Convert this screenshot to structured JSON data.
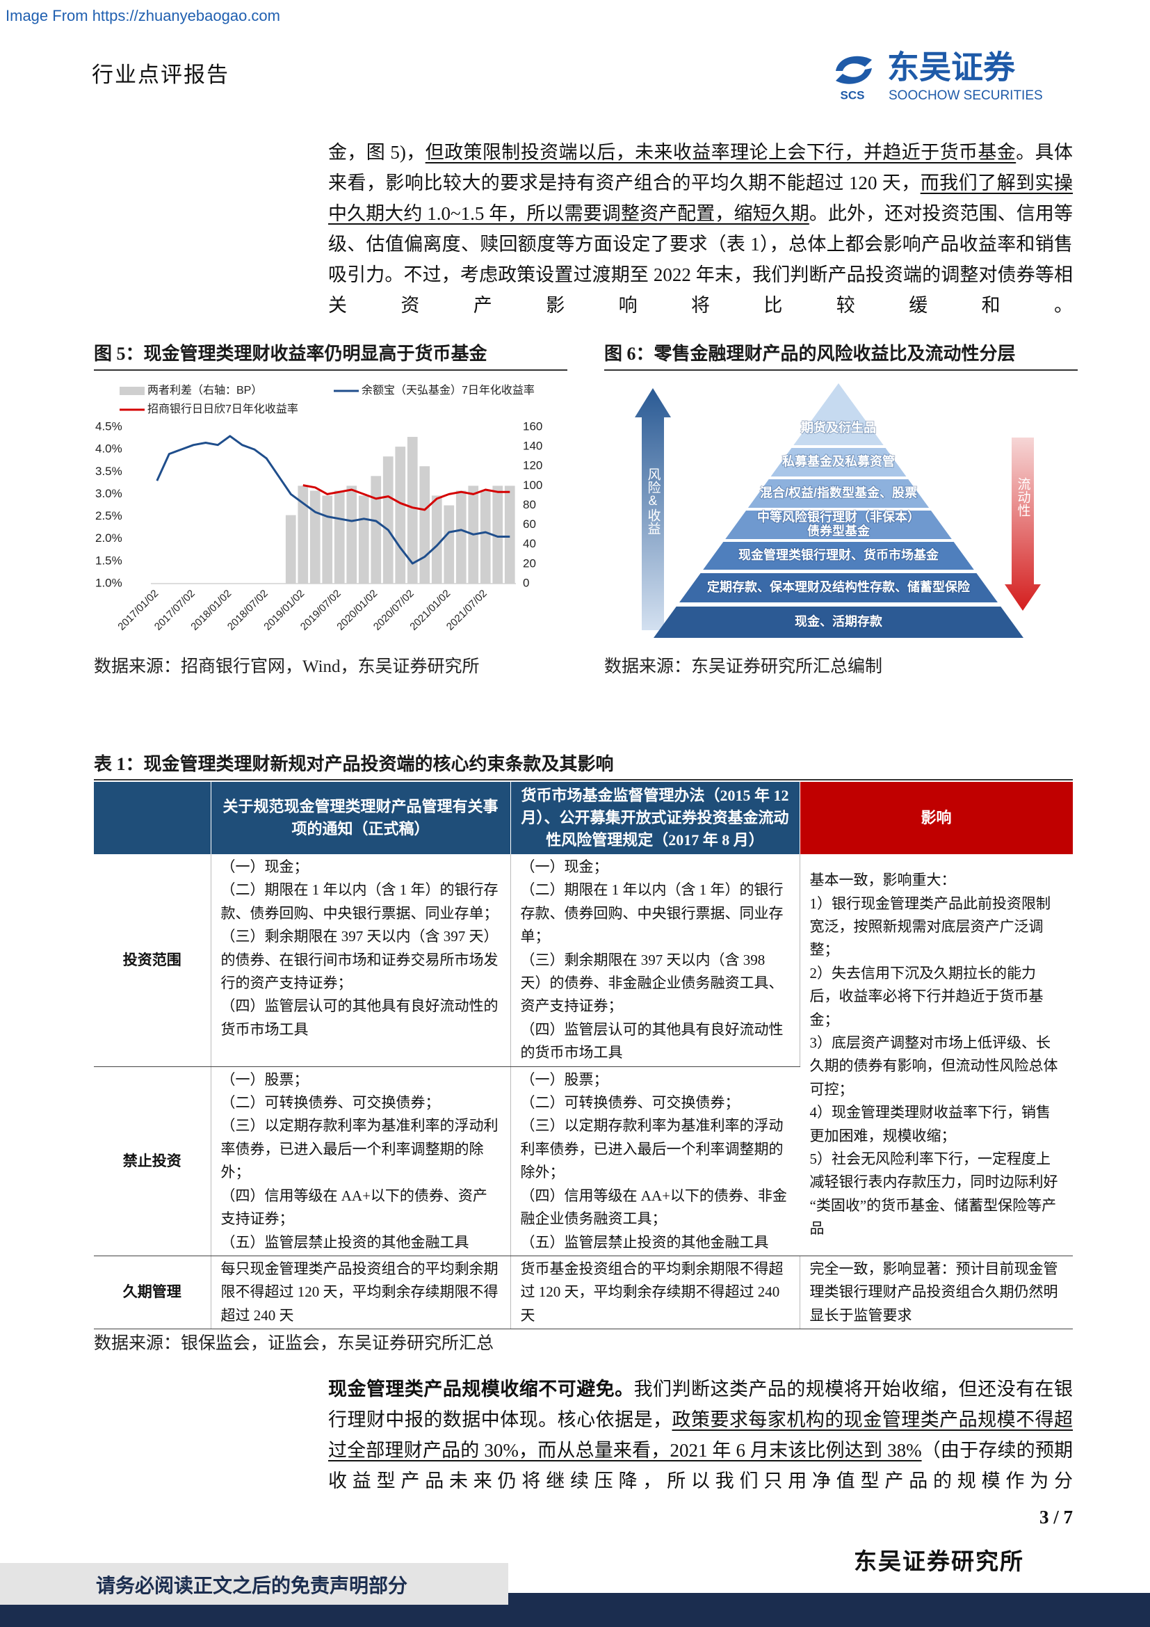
{
  "header": {
    "source_note": "Image From https://zhuanyebaogao.com",
    "report_type": "行业点评报告",
    "logo_abbr": "SCS",
    "logo_cn": "东吴证券",
    "logo_en": "SOOCHOW SECURITIES"
  },
  "paragraph_1": [
    {
      "text": "金，图 5)，"
    },
    {
      "text": "但政策限制投资端以后，未来收益率理论上会下行，并趋近于货币基金",
      "underline": true
    },
    {
      "text": "。具体来看，影响比较大的要求是持有资产组合的平均久期不能超过 120 天，"
    },
    {
      "text": "而我们了解到实操中久期大约 1.0~1.5 年，所以需要调整资产配置，缩短久期",
      "underline": true
    },
    {
      "text": "。此外，还对投资范围、信用等级、估值偏离度、赎回额度等方面设定了要求（表 1），总体上都会影响产品收益率和销售吸引力。不过，考虑政策设置过渡期至 2022 年末，我们判断产品投资端的调整对债券等相关资产影响将比较缓和。"
    }
  ],
  "figure_5": {
    "title": "图 5：现金管理类理财收益率仍明显高于货币基金",
    "source": "数据来源：招商银行官网，Wind，东吴证券研究所"
  },
  "chart_data": {
    "type": "combo",
    "categories": [
      "2017/01/02",
      null,
      null,
      "2017/07/02",
      null,
      null,
      "2018/01/02",
      null,
      null,
      "2018/07/02",
      null,
      null,
      "2019/01/02",
      null,
      null,
      "2019/07/02",
      null,
      null,
      "2020/01/02",
      null,
      null,
      "2020/07/02",
      null,
      null,
      "2021/01/02",
      null,
      null,
      "2021/07/02",
      null,
      null
    ],
    "series": [
      {
        "name": "两者利差（右轴：BP）",
        "color": "#cfcfcf",
        "kind": "bar",
        "axis": "y2",
        "values": [
          null,
          null,
          null,
          null,
          null,
          null,
          null,
          null,
          null,
          null,
          null,
          70,
          100,
          95,
          90,
          95,
          100,
          90,
          110,
          130,
          140,
          150,
          120,
          90,
          80,
          95,
          100,
          95,
          100,
          100
        ]
      },
      {
        "name": "余额宝（天弘基金）7日年化收益率",
        "color": "#1f4e8c",
        "kind": "line",
        "values": [
          3.3,
          3.9,
          4.0,
          4.1,
          4.15,
          4.1,
          4.3,
          4.1,
          4.0,
          3.8,
          3.4,
          3.0,
          2.8,
          2.6,
          2.5,
          2.45,
          2.4,
          2.45,
          2.4,
          2.2,
          1.8,
          1.45,
          1.6,
          1.85,
          2.15,
          2.2,
          2.1,
          2.15,
          2.05,
          2.05
        ]
      },
      {
        "name": "招商银行日日欣7日年化收益率",
        "color": "#d40000",
        "kind": "line",
        "values": [
          null,
          null,
          null,
          null,
          null,
          null,
          null,
          null,
          null,
          null,
          null,
          null,
          3.2,
          3.15,
          3.0,
          3.05,
          3.1,
          3.0,
          2.9,
          2.95,
          2.8,
          2.7,
          2.65,
          2.9,
          3.0,
          3.05,
          3.0,
          3.1,
          3.05,
          3.05
        ]
      }
    ],
    "ylim": [
      1.0,
      4.5
    ],
    "yticks": [
      {
        "value": 1.0,
        "label": "1.0%"
      },
      {
        "value": 1.5,
        "label": "1.5%"
      },
      {
        "value": 2.0,
        "label": "2.0%"
      },
      {
        "value": 2.5,
        "label": "2.5%"
      },
      {
        "value": 3.0,
        "label": "3.0%"
      },
      {
        "value": 3.5,
        "label": "3.5%"
      },
      {
        "value": 4.0,
        "label": "4.0%"
      },
      {
        "value": 4.5,
        "label": "4.5%"
      }
    ],
    "y2lim": [
      0,
      160
    ],
    "y2ticks": [
      0,
      20,
      40,
      60,
      80,
      100,
      120,
      140,
      160
    ],
    "grid": false
  },
  "figure_6": {
    "title": "图 6：零售金融理财产品的风险收益比及流动性分层",
    "source": "数据来源：东吴证券研究所汇总编制",
    "left_arrow": "风险&收益",
    "right_arrow": "流动性",
    "layers": [
      [
        "期货及衍生品"
      ],
      [
        "私募基金及私募资管"
      ],
      [
        "混合/权益/指数型基金、股票"
      ],
      [
        "中等风险银行理财（非保本）",
        "债券型基金"
      ],
      [
        "现金管理类银行理财、货币市场基金"
      ],
      [
        "定期存款、保本理财及结构性存款、储蓄型保险"
      ],
      [
        "现金、活期存款"
      ]
    ]
  },
  "table_1": {
    "title": "表 1：现金管理类理财新规对产品投资端的核心约束条款及其影响",
    "header": [
      "关于规范现金管理类理财产品管理有关事项的通知（正式稿）",
      "货币市场基金监督管理办法（2015 年 12 月）、公开募集开放式证券投资基金流动性风险管理规定（2017 年 8 月）",
      "影响"
    ],
    "rows": [
      {
        "label": "投资范围",
        "cells": [
          [
            "（一）现金；",
            "（二）期限在 1 年以内（含 1 年）的银行存款、债券回购、中央银行票据、同业存单；",
            "（三）剩余期限在 397 天以内（含 397 天）的债券、在银行间市场和证券交易所市场发行的资产支持证券；",
            "（四）监管层认可的其他具有良好流动性的货币市场工具"
          ],
          [
            "（一）现金；",
            "（二）期限在 1 年以内（含 1 年）的银行存款、债券回购、中央银行票据、同业存单；",
            "（三）剩余期限在 397 天以内（含 398 天）的债券、非金融企业债务融资工具、资产支持证券；",
            "（四）监管层认可的其他具有良好流动性的货币市场工具"
          ]
        ]
      },
      {
        "label": "禁止投资",
        "cells": [
          [
            "（一）股票；",
            "（二）可转换债券、可交换债券；",
            "（三）以定期存款利率为基准利率的浮动利率债券，已进入最后一个利率调整期的除外；",
            "（四）信用等级在 AA+以下的债券、资产支持证券；",
            "（五）监管层禁止投资的其他金融工具"
          ],
          [
            "（一）股票；",
            "（二）可转换债券、可交换债券；",
            "（三）以定期存款利率为基准利率的浮动利率债券，已进入最后一个利率调整期的除外；",
            "（四）信用等级在 AA+以下的债券、非金融企业债务融资工具；",
            "（五）监管层禁止投资的其他金融工具"
          ]
        ]
      },
      {
        "label": "久期管理",
        "cells": [
          [
            "每只现金管理类产品投资组合的平均剩余期限不得超过 120 天，平均剩余存续期限不得超过 240 天"
          ],
          [
            "货币基金投资组合的平均剩余期限不得超过 120 天，平均剩余存续期不得超过 240 天"
          ]
        ]
      }
    ],
    "impact": [
      [
        "基本一致，影响重大：",
        "1）银行现金管理类产品此前投资限制宽泛，按照新规需对底层资产广泛调整；",
        "2）失去信用下沉及久期拉长的能力后，收益率必将下行并趋近于货币基金；",
        "3）底层资产调整对市场上低评级、长久期的债券有影响，但流动性风险总体可控；",
        "4）现金管理类理财收益率下行，销售更加困难，规模收缩；",
        "5）社会无风险利率下行，一定程度上减轻银行表内存款压力，同时边际利好“类固收”的货币基金、储蓄型保险等产品"
      ],
      [
        "完全一致，影响显著：预计目前现金管理类银行理财产品投资组合久期仍然明显长于监管要求"
      ]
    ],
    "source": "数据来源：银保监会，证监会，东吴证券研究所汇总"
  },
  "paragraph_2": [
    {
      "text": "现金管理类产品规模收缩不可避免。",
      "bold": true
    },
    {
      "text": "我们判断这类产品的规模将开始收缩，但还没有在银行理财中报的数据中体现。核心依据是，"
    },
    {
      "text": "政策要求每家机构的现金管理类产品规模不得超过全部理财产品的 30%，而从总量来看，2021 年 6 月末该比例达到 38%",
      "underline": true
    },
    {
      "text": "（由于存续的预期收益型产品未来仍将继续压降，所以我们只用净值型产品的规模作为分"
    }
  ],
  "page_number": "3 / 7",
  "footer": {
    "institute": "东吴证券研究所",
    "disclaimer": "请务必阅读正文之后的免责声明部分"
  }
}
